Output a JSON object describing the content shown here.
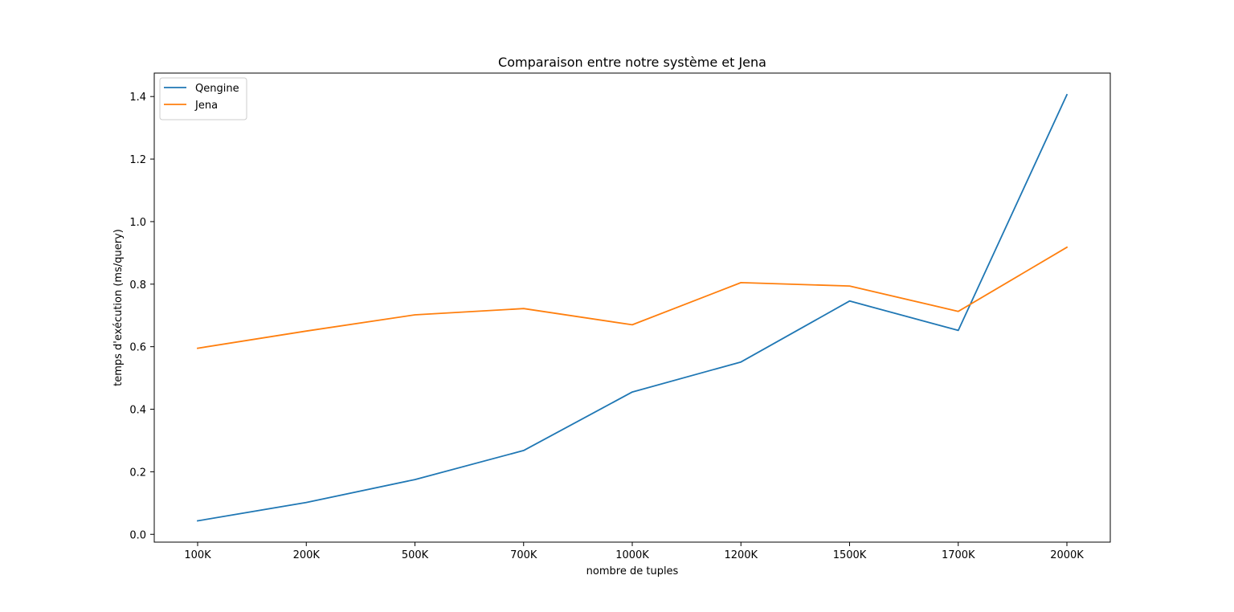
{
  "chart_data": {
    "type": "line",
    "title": "Comparaison entre notre système et Jena",
    "xlabel": "nombre de tuples",
    "ylabel": "temps d'exécution (ms/query)",
    "categories": [
      "100K",
      "200K",
      "500K",
      "700K",
      "1000K",
      "1200K",
      "1500K",
      "1700K",
      "2000K"
    ],
    "ylim": [
      -0.025,
      1.475
    ],
    "yticks": [
      "0.0",
      "0.2",
      "0.4",
      "0.6",
      "0.8",
      "1.0",
      "1.2",
      "1.4"
    ],
    "grid": false,
    "legend_position": "top-left",
    "series": [
      {
        "name": "Qengine",
        "color": "#1f77b4",
        "values": [
          0.043,
          0.102,
          0.175,
          0.268,
          0.455,
          0.551,
          0.746,
          0.652,
          1.406
        ]
      },
      {
        "name": "Jena",
        "color": "#ff7f0e",
        "values": [
          0.595,
          0.65,
          0.702,
          0.722,
          0.67,
          0.805,
          0.794,
          0.713,
          0.918
        ]
      }
    ]
  }
}
